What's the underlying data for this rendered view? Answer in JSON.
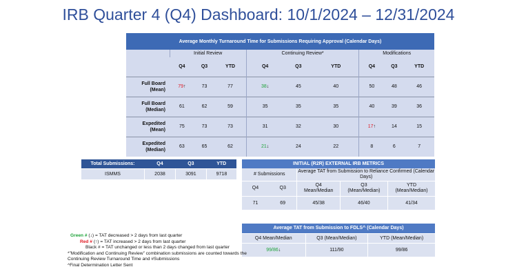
{
  "title": "IRB Quarter 4 (Q4) Dashboard: 10/1/2024 – 12/31/2024",
  "main": {
    "caption": "Average Monthly Turnaround Time for Submissions Requiring Approval (Calendar Days)",
    "groups": [
      "Initial Review",
      "Continuing Review*",
      "Modifications"
    ],
    "cols": [
      "Q4",
      "Q3",
      "YTD"
    ],
    "rows": [
      {
        "label1": "Full Board",
        "label2": "(Mean)",
        "ir": {
          "q4": "79",
          "q4_arrow": "↑",
          "q3": "73",
          "ytd": "77"
        },
        "cr": {
          "q4": "38",
          "q4_arrow": "↓",
          "q3": "45",
          "ytd": "40"
        },
        "mod": {
          "q4": "50",
          "q4_arrow": "",
          "q3": "48",
          "ytd": "46"
        }
      },
      {
        "label1": "Full Board",
        "label2": "(Median)",
        "ir": {
          "q4": "61",
          "q4_arrow": "",
          "q3": "62",
          "ytd": "59"
        },
        "cr": {
          "q4": "35",
          "q4_arrow": "",
          "q3": "35",
          "ytd": "35"
        },
        "mod": {
          "q4": "40",
          "q4_arrow": "",
          "q3": "39",
          "ytd": "36"
        }
      },
      {
        "label1": "Expedited",
        "label2": "(Mean)",
        "ir": {
          "q4": "75",
          "q4_arrow": "",
          "q3": "73",
          "ytd": "73"
        },
        "cr": {
          "q4": "31",
          "q4_arrow": "",
          "q3": "32",
          "ytd": "30"
        },
        "mod": {
          "q4": "17",
          "q4_arrow": "↑",
          "q3": "14",
          "ytd": "15"
        }
      },
      {
        "label1": "Expedited",
        "label2": "(Median)",
        "ir": {
          "q4": "63",
          "q4_arrow": "",
          "q3": "65",
          "ytd": "62"
        },
        "cr": {
          "q4": "21",
          "q4_arrow": "↓",
          "q3": "24",
          "ytd": "22"
        },
        "mod": {
          "q4": "8",
          "q4_arrow": "",
          "q3": "6",
          "ytd": "7"
        }
      }
    ]
  },
  "totals": {
    "header": [
      "Total Submissions:",
      "Q4",
      "Q3",
      "YTD"
    ],
    "row": [
      "ISMMS",
      "2038",
      "3091",
      "9718"
    ]
  },
  "external": {
    "caption": "INITIAL (R2R) EXTERNAL IRB METRICS",
    "sub_left": "# Submissions",
    "sub_right": "Average TAT from Submission to Reliance Confirmed (Calendar Days)",
    "cols": [
      {
        "l1": "Q4",
        "l2": ""
      },
      {
        "l1": "Q3",
        "l2": ""
      },
      {
        "l1": "Q4",
        "l2": "Mean/Median"
      },
      {
        "l1": "Q3",
        "l2": "(Mean/Median)"
      },
      {
        "l1": "YTD",
        "l2": "(Mean/Median)"
      }
    ],
    "values": [
      "71",
      "69",
      "45/38",
      "46/40",
      "41/34"
    ]
  },
  "fdls": {
    "caption": "Average TAT from Submission to FDLS^ (Calendar Days)",
    "cols": [
      "Q4 Mean/Median",
      "Q3 (Mean/Median)",
      "YTD (Mean/Median)"
    ],
    "q4_mean": "99",
    "q4_median": "/86",
    "q4_arrow": "↓",
    "q3": "111/90",
    "ytd": "99/86"
  },
  "legend": {
    "green_label": "Green #",
    "green_sym": "(↓)",
    "green_text": "= TAT decreased  > 2 days from last quarter",
    "red_label": "Red #",
    "red_sym": "(↑)",
    "red_text": "= TAT increased  > 2 days from last quarter",
    "black_text": "Black # = TAT unchanged or less than 2 days changed from last quarter",
    "note1": "*”Modification and Continuing Review” combination submissions are counted towards the Continuing Review Turnaround Time and #Submissions",
    "note2": "^Final Determination Letter Sent"
  },
  "colors": {
    "title": "#2f4f9a",
    "header_blue": "#3d6ab5",
    "cell_light": "#d4dbee",
    "increase": "#e01b24",
    "decrease": "#1fa33a"
  }
}
